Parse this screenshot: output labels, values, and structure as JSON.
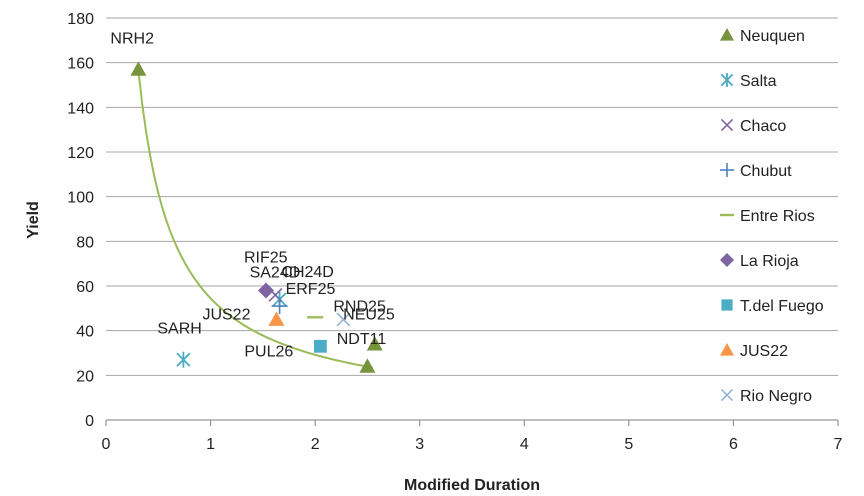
{
  "chart_data": {
    "type": "scatter",
    "title": "",
    "xlabel": "Modified Duration",
    "ylabel": "Yield",
    "xlim": [
      0,
      7
    ],
    "ylim": [
      0,
      180
    ],
    "x_ticks": [
      "0",
      "1",
      "2",
      "3",
      "4",
      "5",
      "6",
      "7"
    ],
    "y_ticks": [
      "0",
      "20",
      "40",
      "60",
      "80",
      "100",
      "120",
      "140",
      "160",
      "180"
    ],
    "grid": "horizontal",
    "legend_position": "right",
    "series": [
      {
        "name": "Neuquen",
        "marker": "triangle",
        "color": "#77933c",
        "points": [
          {
            "x": 0.31,
            "y": 157,
            "label": "NRH2"
          },
          {
            "x": 2.57,
            "y": 34,
            "label": "NDT11"
          },
          {
            "x": 2.5,
            "y": 24,
            "label": ""
          }
        ]
      },
      {
        "name": "Salta",
        "marker": "asterisk",
        "color": "#4bacc6",
        "points": [
          {
            "x": 0.74,
            "y": 27,
            "label": "SARH"
          },
          {
            "x": 1.66,
            "y": 54,
            "label": "SA24D"
          }
        ]
      },
      {
        "name": "Chaco",
        "marker": "x",
        "color": "#8064a2",
        "points": [
          {
            "x": 1.62,
            "y": 56,
            "label": "CH24D"
          }
        ]
      },
      {
        "name": "Chubut",
        "marker": "plus",
        "color": "#4f81bd",
        "points": [
          {
            "x": 1.66,
            "y": 51,
            "label": "ERF25"
          }
        ]
      },
      {
        "name": "Entre Rios",
        "marker": "dash",
        "color": "#9bbb59",
        "points": [
          {
            "x": 2.0,
            "y": 46,
            "label": "NEU25"
          }
        ]
      },
      {
        "name": "La Rioja",
        "marker": "diamond",
        "color": "#8064a2",
        "points": [
          {
            "x": 1.53,
            "y": 58,
            "label": "RIF25"
          }
        ]
      },
      {
        "name": "T.del Fuego",
        "marker": "square",
        "color": "#4bacc6",
        "points": [
          {
            "x": 2.05,
            "y": 33,
            "label": "PUL26"
          }
        ]
      },
      {
        "name": "JUS22",
        "marker": "triangle",
        "color": "#f79646",
        "points": [
          {
            "x": 1.63,
            "y": 45,
            "label": "JUS22"
          }
        ]
      },
      {
        "name": "Rio Negro",
        "marker": "x",
        "color": "#95b3d7",
        "points": [
          {
            "x": 2.27,
            "y": 45,
            "label": "RND25"
          }
        ]
      }
    ],
    "trendline": {
      "type": "power",
      "color": "#9bbb59",
      "x_range": [
        0.31,
        2.55
      ],
      "formula": "y = 54.5 * x^-0.9"
    }
  }
}
